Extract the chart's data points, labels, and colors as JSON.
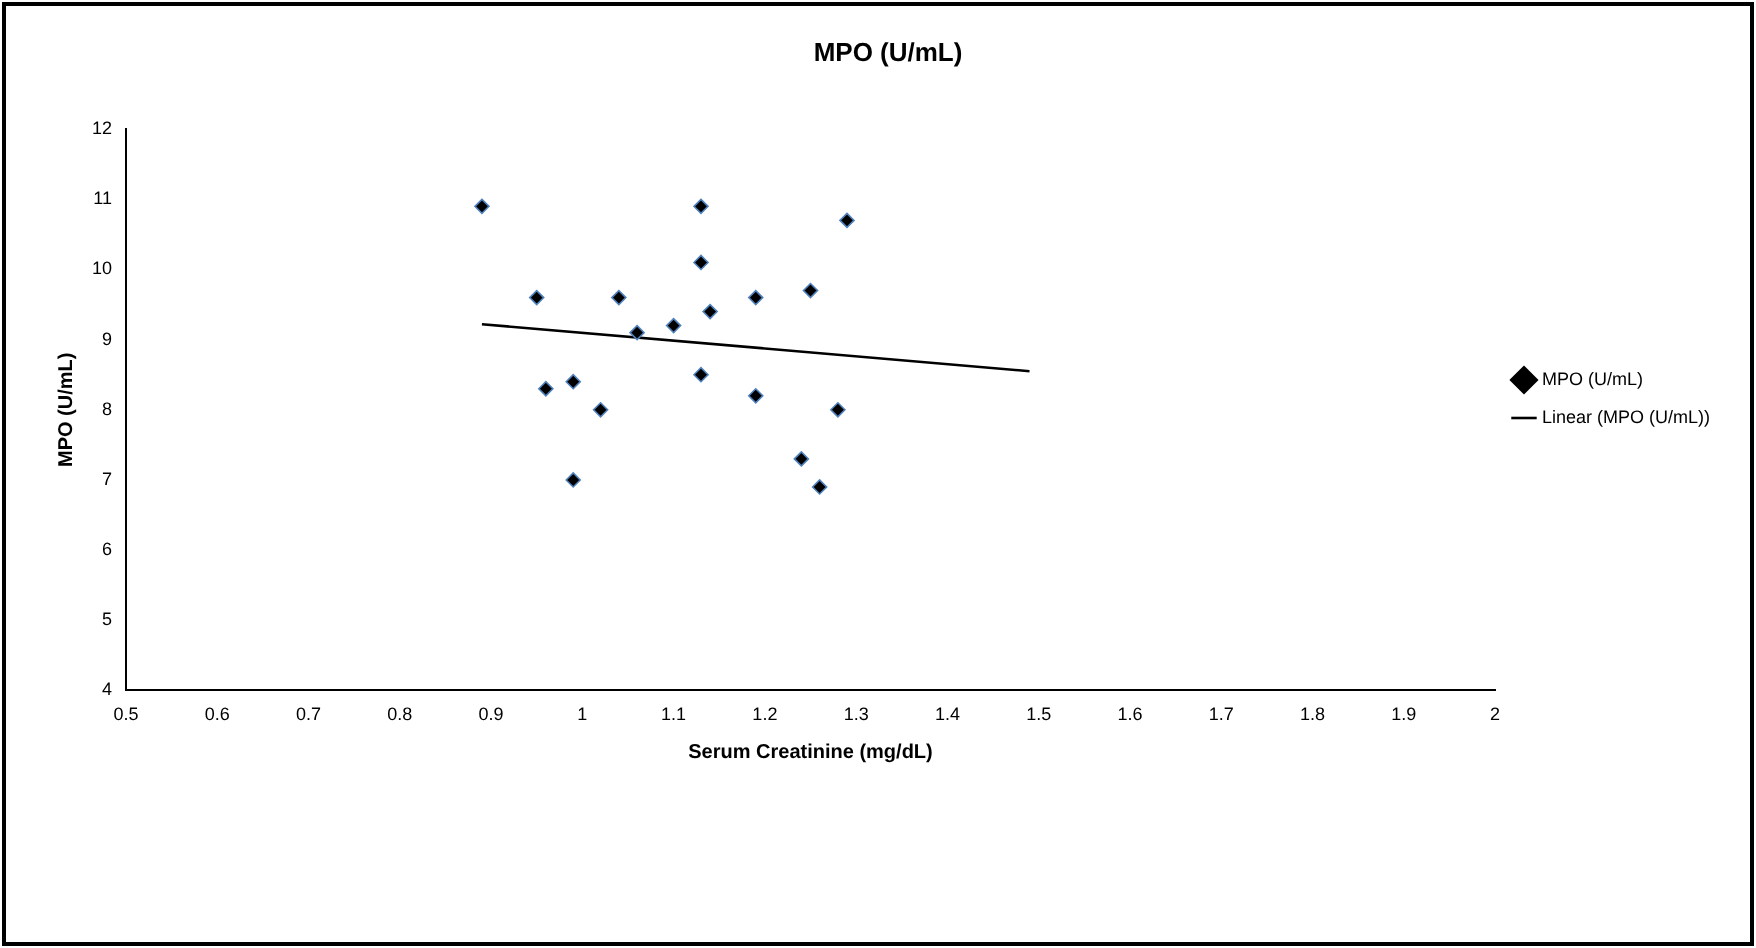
{
  "chart_data": {
    "type": "scatter",
    "title": "MPO (U/mL)",
    "xlabel": "Serum Creatinine (mg/dL)",
    "ylabel": "MPO (U/mL)",
    "xlim": [
      0.5,
      2
    ],
    "xticks": [
      0.5,
      0.6,
      0.7,
      0.8,
      0.9,
      1,
      1.1,
      1.2,
      1.3,
      1.4,
      1.5,
      1.6,
      1.7,
      1.8,
      1.9,
      2
    ],
    "ylim": [
      4,
      12
    ],
    "yticks": [
      4,
      5,
      6,
      7,
      8,
      9,
      10,
      11,
      12
    ],
    "grid": false,
    "legend": "right",
    "marker": "diamond",
    "series": [
      {
        "name": "MPO (U/mL)",
        "color": "#000000",
        "x": [
          0.89,
          0.95,
          0.96,
          0.99,
          0.99,
          1.02,
          1.04,
          1.06,
          1.1,
          1.13,
          1.13,
          1.13,
          1.14,
          1.19,
          1.19,
          1.24,
          1.25,
          1.26,
          1.28,
          1.29
        ],
        "values": [
          10.9,
          9.6,
          8.3,
          8.4,
          7.0,
          8.0,
          9.6,
          9.1,
          9.2,
          10.9,
          10.1,
          8.5,
          9.4,
          9.6,
          8.2,
          7.3,
          9.7,
          6.9,
          8.0,
          10.7
        ]
      },
      {
        "name": "Linear (MPO (U/mL))",
        "type": "line",
        "color": "#000000",
        "marker": "none",
        "x": [
          0.89,
          1.49
        ],
        "values": [
          9.22,
          8.55
        ]
      }
    ]
  }
}
